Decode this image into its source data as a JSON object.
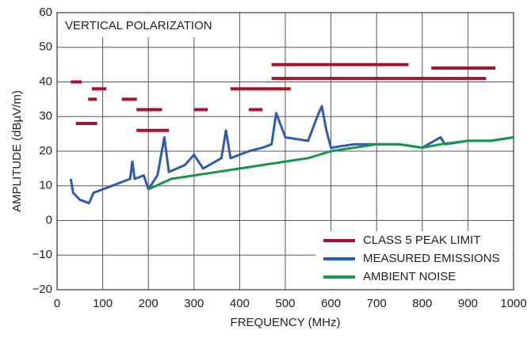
{
  "chart_data": {
    "type": "line",
    "annotation": "VERTICAL POLARIZATION",
    "x_label": "FREQUENCY (MHz)",
    "y_label": "AMPLITUDE (dBµV/m)",
    "xlim": [
      0,
      1000
    ],
    "xticks": [
      0,
      100,
      200,
      300,
      400,
      500,
      600,
      700,
      800,
      900,
      1000
    ],
    "ylim": [
      -20,
      60
    ],
    "yticks": [
      {
        "value": -20,
        "label": "−20"
      },
      {
        "value": -10,
        "label": "−10"
      },
      0,
      10,
      20,
      30,
      40,
      50,
      60
    ],
    "grid": true,
    "legend": "lower right",
    "series": [
      {
        "name": "CLASS 5 PEAK LIMIT",
        "color": "#a3152f",
        "x": [
          30,
          54,
          null,
          41,
          88,
          null,
          68,
          87,
          null,
          76,
          108,
          null,
          142,
          175,
          null,
          174,
          230,
          null,
          174,
          245,
          null,
          300,
          330,
          null,
          380,
          512,
          null,
          420,
          450,
          null,
          470,
          770,
          null,
          470,
          940,
          null,
          820,
          960
        ],
        "values": [
          40,
          40,
          null,
          28,
          28,
          null,
          35,
          35,
          null,
          38,
          38,
          null,
          35,
          35,
          null,
          32,
          32,
          null,
          26,
          26,
          null,
          32,
          32,
          null,
          38,
          38,
          null,
          32,
          32,
          null,
          45,
          45,
          null,
          41,
          41,
          null,
          44,
          44
        ]
      },
      {
        "name": "MEASURED EMISSIONS",
        "color": "#2d5bb0",
        "x": [
          30,
          35,
          50,
          70,
          80,
          100,
          120,
          140,
          160,
          165,
          170,
          190,
          200,
          220,
          235,
          245,
          280,
          300,
          320,
          360,
          370,
          380,
          420,
          450,
          470,
          480,
          500,
          550,
          570,
          580,
          590,
          600,
          650,
          700,
          750,
          800,
          840,
          850,
          900,
          950,
          1000
        ],
        "values": [
          12,
          8,
          6,
          5,
          8,
          9,
          10,
          11,
          12,
          17,
          12,
          13,
          9,
          13,
          24,
          14,
          16,
          19,
          15,
          18,
          26,
          18,
          20,
          21,
          22,
          31,
          24,
          23,
          30,
          33,
          26,
          21,
          22,
          22,
          22,
          21,
          24,
          22,
          23,
          23,
          24
        ]
      },
      {
        "name": "AMBIENT NOISE",
        "color": "#18944b",
        "x": [
          200,
          250,
          300,
          350,
          400,
          450,
          500,
          550,
          600,
          650,
          700,
          750,
          800,
          840,
          900,
          950,
          1000
        ],
        "values": [
          9,
          12,
          13,
          14,
          15,
          16,
          17,
          18,
          20,
          21,
          22,
          22,
          21,
          22,
          23,
          23,
          24
        ]
      }
    ]
  }
}
